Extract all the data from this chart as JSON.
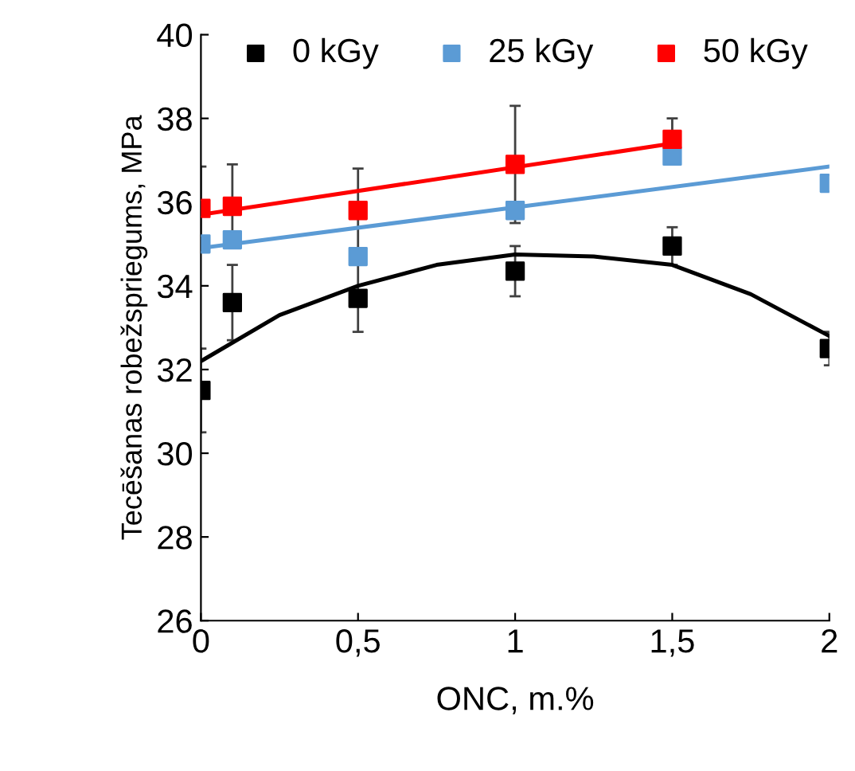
{
  "chart_data": {
    "type": "scatter",
    "xlabel": "ONC, m.%",
    "ylabel": "Tecēšanas robežspriegums, MPa",
    "xlim": [
      0,
      2
    ],
    "ylim": [
      26,
      40
    ],
    "xticks": [
      {
        "value": 0,
        "label": "0"
      },
      {
        "value": 0.5,
        "label": "0,5"
      },
      {
        "value": 1,
        "label": "1"
      },
      {
        "value": 1.5,
        "label": "1,5"
      },
      {
        "value": 2,
        "label": "2"
      }
    ],
    "yticks": [
      26,
      28,
      30,
      32,
      34,
      36,
      38,
      40
    ],
    "grid": false,
    "legend": "top",
    "marker": "square",
    "series": [
      {
        "name": "0 kGy",
        "color": "#000000",
        "x": [
          0,
          0.1,
          0.5,
          1,
          1.5,
          2
        ],
        "values": [
          31.5,
          33.6,
          33.7,
          34.35,
          34.95,
          32.5
        ],
        "errors": [
          1,
          0.9,
          0.8,
          0.6,
          0.45,
          0.4
        ]
      },
      {
        "name": "25 kGy",
        "color": "#5b9bd5",
        "x": [
          0,
          0.1,
          0.5,
          1,
          1.5,
          2
        ],
        "values": [
          35.0,
          35.1,
          34.7,
          35.8,
          37.1,
          36.45
        ]
      },
      {
        "name": "50 kGy",
        "color": "#ff0000",
        "x": [
          0,
          0.1,
          0.5,
          1,
          1.5
        ],
        "values": [
          35.85,
          35.9,
          35.8,
          36.9,
          37.5
        ],
        "errors": [
          1,
          1,
          1,
          1.4,
          0.5
        ]
      },
      {
        "type": "line",
        "marker": "none",
        "color": "#000000",
        "x": [
          0,
          0.25,
          0.5,
          0.75,
          1,
          1.25,
          1.5,
          1.75,
          2
        ],
        "values": [
          32.2,
          33.3,
          34.0,
          34.5,
          34.75,
          34.7,
          34.5,
          33.8,
          32.8
        ]
      },
      {
        "type": "line",
        "marker": "none",
        "color": "#5b9bd5",
        "x": [
          0,
          2
        ],
        "values": [
          34.9,
          36.85
        ]
      },
      {
        "type": "line",
        "marker": "none",
        "color": "#ff0000",
        "x": [
          0,
          1.5
        ],
        "values": [
          35.7,
          37.4
        ]
      }
    ]
  }
}
